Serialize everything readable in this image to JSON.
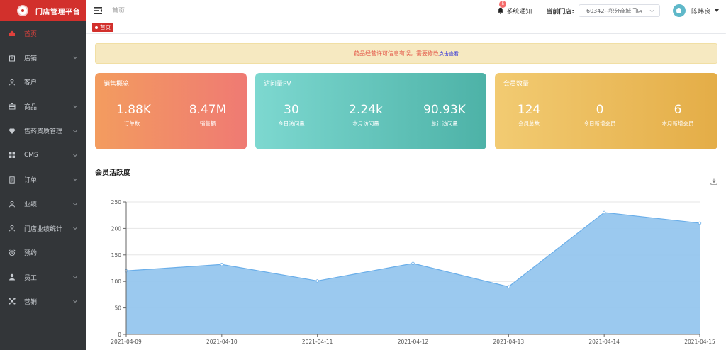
{
  "brand": {
    "title": "门店管理平台"
  },
  "sidebar": {
    "items": [
      {
        "label": "首页",
        "icon": "home-icon",
        "active": true,
        "has_children": false
      },
      {
        "label": "店铺",
        "icon": "store-icon",
        "active": false,
        "has_children": true
      },
      {
        "label": "客户",
        "icon": "user-icon",
        "active": false,
        "has_children": false
      },
      {
        "label": "商品",
        "icon": "briefcase-icon",
        "active": false,
        "has_children": true
      },
      {
        "label": "售药资质管理",
        "icon": "diamond-icon",
        "active": false,
        "has_children": true
      },
      {
        "label": "CMS",
        "icon": "grid-icon",
        "active": false,
        "has_children": true
      },
      {
        "label": "订单",
        "icon": "document-icon",
        "active": false,
        "has_children": true
      },
      {
        "label": "业绩",
        "icon": "user-icon",
        "active": false,
        "has_children": true
      },
      {
        "label": "门店业绩统计",
        "icon": "user-icon",
        "active": false,
        "has_children": true
      },
      {
        "label": "预约",
        "icon": "alarm-icon",
        "active": false,
        "has_children": false
      },
      {
        "label": "员工",
        "icon": "staff-icon",
        "active": false,
        "has_children": true
      },
      {
        "label": "营销",
        "icon": "marketing-icon",
        "active": false,
        "has_children": true
      }
    ]
  },
  "header": {
    "breadcrumb": "首页",
    "notice_label": "系统通知",
    "notice_count": "5",
    "store_label": "当前门店:",
    "store_value": "60342--积分商城门店",
    "username": "陈炜良"
  },
  "tags": {
    "home": "首页"
  },
  "alert": {
    "text": "药品经营许可信息有误，需要修改",
    "link": "点击查看"
  },
  "cards": {
    "sales": {
      "title": "销售概览",
      "stats": [
        {
          "value": "1.88K",
          "label": "订单数"
        },
        {
          "value": "8.47M",
          "label": "销售额"
        }
      ]
    },
    "pv": {
      "title": "访问量PV",
      "stats": [
        {
          "value": "30",
          "label": "今日访问量"
        },
        {
          "value": "2.24k",
          "label": "本月访问量"
        },
        {
          "value": "90.93K",
          "label": "总计访问量"
        }
      ]
    },
    "members": {
      "title": "会员数量",
      "stats": [
        {
          "value": "124",
          "label": "会员总数"
        },
        {
          "value": "0",
          "label": "今日新增会员"
        },
        {
          "value": "6",
          "label": "本月新增会员"
        }
      ]
    }
  },
  "section": {
    "title": "会员活跃度"
  },
  "colors": {
    "brand": "#d2302c",
    "sidebar": "#333639",
    "area_fill": "#93c4ee",
    "area_line": "#6aaee9"
  },
  "chart_data": {
    "type": "area",
    "title": "会员活跃度",
    "xlabel": "",
    "ylabel": "",
    "categories": [
      "2021-04-09",
      "2021-04-10",
      "2021-04-11",
      "2021-04-12",
      "2021-04-13",
      "2021-04-14",
      "2021-04-15"
    ],
    "series": [
      {
        "values": [
          120,
          132,
          101,
          134,
          90,
          230,
          210
        ]
      }
    ],
    "ylim": [
      0,
      250
    ],
    "yticks": [
      "0",
      "50",
      "100",
      "150",
      "200",
      "250"
    ],
    "grid": true,
    "legend": "none"
  }
}
